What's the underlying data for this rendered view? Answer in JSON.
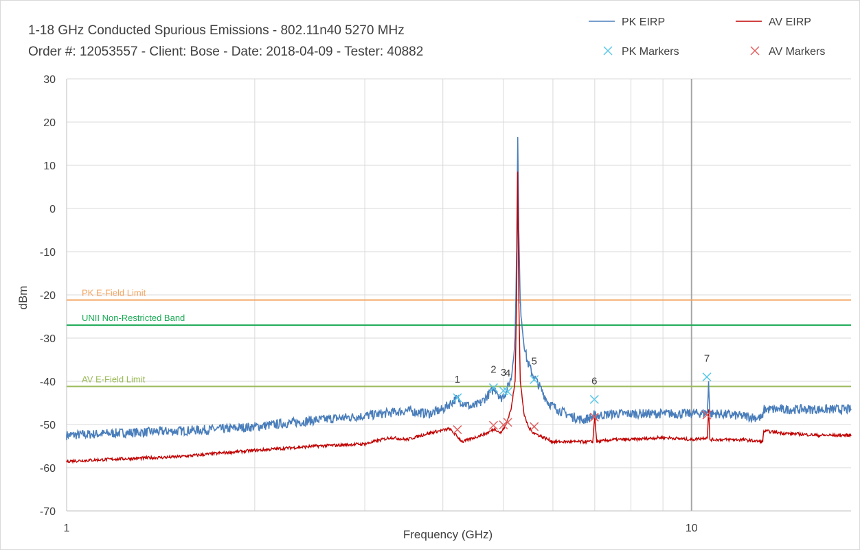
{
  "chart_data": {
    "type": "line",
    "title": "1-18 GHz Conducted Spurious Emissions - 802.11n40 5270 MHz",
    "subtitle": "Order #: 12053557  -  Client: Bose  -  Date: 2018-04-09  -  Tester: 40882",
    "xlabel": "Frequency (GHz)",
    "ylabel": "dBm",
    "x_scale": "log",
    "xlim": [
      1,
      18
    ],
    "ylim": [
      -70,
      30
    ],
    "x_ticks": [
      1,
      10
    ],
    "y_ticks": [
      30,
      20,
      10,
      0,
      -10,
      -20,
      -30,
      -40,
      -50,
      -60,
      -70
    ],
    "grid": true,
    "legend_position": "top-right",
    "legend": [
      {
        "label": "PK EIRP",
        "kind": "line",
        "color": "#4a7ebb"
      },
      {
        "label": "AV EIRP",
        "kind": "line",
        "color": "#c00000"
      },
      {
        "label": "PK Markers",
        "kind": "x",
        "color": "#5bc8e8"
      },
      {
        "label": "AV Markers",
        "kind": "x",
        "color": "#e06060"
      }
    ],
    "limit_lines": [
      {
        "label": "PK E-Field Limit",
        "y": -21.2,
        "color": "#f4a460"
      },
      {
        "label": "UNII Non-Restricted Band",
        "y": -27.0,
        "color": "#1aaa55"
      },
      {
        "label": "AV E-Field Limit",
        "y": -41.2,
        "color": "#9bbb59"
      }
    ],
    "series": [
      {
        "name": "PK EIRP",
        "color": "#4a7ebb",
        "x": [
          1.0,
          1.2,
          1.5,
          1.8,
          2.0,
          2.5,
          3.0,
          3.5,
          3.8,
          4.0,
          4.2,
          4.45,
          4.6,
          4.7,
          4.85,
          4.95,
          5.05,
          5.15,
          5.22,
          5.25,
          5.27,
          5.29,
          5.32,
          5.38,
          5.45,
          5.55,
          5.7,
          5.9,
          6.1,
          6.4,
          6.7,
          7.0,
          7.5,
          8.0,
          9.0,
          10.0,
          10.6,
          10.65,
          10.7,
          11.0,
          12.0,
          13.0,
          13.05,
          14.0,
          16.0,
          18.0
        ],
        "y": [
          -52.5,
          -52,
          -51.5,
          -51,
          -50.5,
          -49,
          -48,
          -46.8,
          -47.5,
          -46.5,
          -44,
          -46,
          -45,
          -43.5,
          -41.5,
          -44,
          -42.5,
          -39,
          -30,
          -10,
          16.5,
          -5,
          -22,
          -30,
          -35,
          -38,
          -41,
          -45,
          -46.5,
          -48,
          -49,
          -48,
          -47.5,
          -47.5,
          -47.5,
          -47.5,
          -47.3,
          -40,
          -47.5,
          -47.5,
          -48,
          -48.5,
          -46.5,
          -46.5,
          -46.5,
          -46.5
        ]
      },
      {
        "name": "AV EIRP",
        "color": "#c00000",
        "x": [
          1.0,
          1.2,
          1.5,
          1.8,
          2.0,
          2.5,
          3.0,
          3.3,
          3.5,
          3.8,
          4.1,
          4.3,
          4.5,
          4.7,
          4.85,
          4.95,
          5.05,
          5.15,
          5.22,
          5.25,
          5.27,
          5.29,
          5.32,
          5.4,
          5.5,
          5.6,
          5.8,
          6.0,
          6.5,
          6.95,
          7.0,
          7.05,
          7.5,
          8.0,
          9.0,
          10.0,
          10.6,
          10.65,
          10.7,
          11.0,
          12.0,
          13.0,
          13.05,
          14.0,
          16.0,
          18.0
        ],
        "y": [
          -58.5,
          -58,
          -57.5,
          -56.5,
          -56,
          -55,
          -54.5,
          -53,
          -53.5,
          -52,
          -51,
          -54,
          -53,
          -52,
          -51,
          -52,
          -50,
          -46,
          -40,
          -20,
          8.5,
          -20,
          -40,
          -48,
          -51,
          -52,
          -53,
          -54,
          -54,
          -54,
          -48,
          -54,
          -53.5,
          -53.5,
          -53,
          -53.5,
          -53,
          -46.5,
          -53.5,
          -53.5,
          -53.5,
          -54,
          -51.5,
          -52,
          -52.5,
          -52.5
        ]
      }
    ],
    "pk_markers": [
      {
        "label": "1",
        "x": 4.22,
        "y": -43.8
      },
      {
        "label": "2",
        "x": 4.82,
        "y": -41.5
      },
      {
        "label": "3",
        "x": 5.0,
        "y": -42.2
      },
      {
        "label": "4",
        "x": 5.08,
        "y": -42.4
      },
      {
        "label": "5",
        "x": 5.6,
        "y": -39.6
      },
      {
        "label": "6",
        "x": 6.99,
        "y": -44.2
      },
      {
        "label": "7",
        "x": 10.58,
        "y": -39.0
      }
    ],
    "av_markers": [
      {
        "x": 4.22,
        "y": -51.2
      },
      {
        "x": 4.82,
        "y": -50.2
      },
      {
        "x": 5.0,
        "y": -50.1
      },
      {
        "x": 5.08,
        "y": -49.5
      },
      {
        "x": 5.6,
        "y": -50.5
      },
      {
        "x": 6.99,
        "y": -48.3
      },
      {
        "x": 10.58,
        "y": -47.8
      }
    ]
  }
}
